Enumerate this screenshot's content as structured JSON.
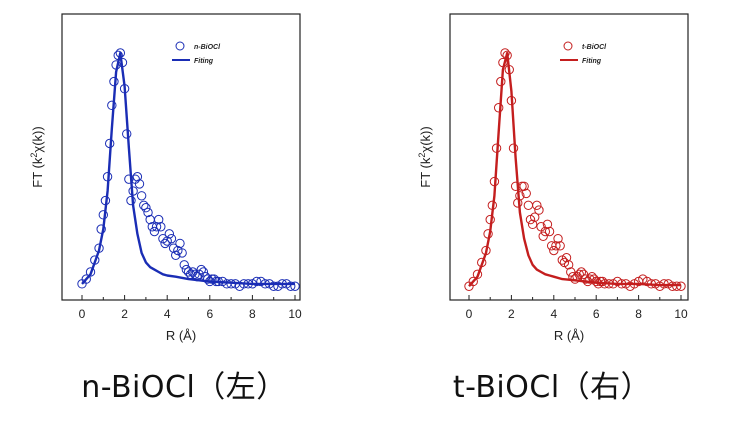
{
  "chart_data": [
    {
      "type": "scatter",
      "sample": "n-BiOCl",
      "xlabel": "R (Å)",
      "ylabel_prefix": "FT (k",
      "ylabel_sup": "2",
      "ylabel_suffix": "χ(k))",
      "xlim": [
        -1,
        10.5
      ],
      "ylim": [
        0,
        1.1
      ],
      "xticks": [
        "0",
        "2",
        "4",
        "6",
        "8",
        "10"
      ],
      "yticks": [],
      "legend_placement": "top-right",
      "color": "#1a2db5",
      "series": [
        {
          "name": "n-BiOCl",
          "style": "open-circles",
          "x": [
            0.0,
            0.2,
            0.4,
            0.6,
            0.8,
            0.9,
            1.0,
            1.1,
            1.2,
            1.3,
            1.4,
            1.5,
            1.6,
            1.7,
            1.8,
            1.9,
            2.0,
            2.1,
            2.2,
            2.3,
            2.4,
            2.5,
            2.6,
            2.7,
            2.8,
            2.9,
            3.0,
            3.1,
            3.2,
            3.3,
            3.4,
            3.5,
            3.6,
            3.7,
            3.8,
            3.9,
            4.0,
            4.1,
            4.2,
            4.3,
            4.4,
            4.5,
            4.6,
            4.7,
            4.8,
            4.9,
            5.0,
            5.1,
            5.2,
            5.3,
            5.4,
            5.5,
            5.6,
            5.7,
            5.8,
            5.9,
            6.0,
            6.1,
            6.2,
            6.3,
            6.4,
            6.6,
            6.8,
            7.0,
            7.2,
            7.4,
            7.6,
            7.8,
            8.0,
            8.2,
            8.4,
            8.6,
            8.8,
            9.0,
            9.2,
            9.4,
            9.6,
            9.8,
            10.0
          ],
          "y": [
            0.03,
            0.05,
            0.08,
            0.13,
            0.18,
            0.26,
            0.32,
            0.38,
            0.48,
            0.62,
            0.78,
            0.88,
            0.95,
            0.99,
            1.0,
            0.96,
            0.85,
            0.66,
            0.47,
            0.38,
            0.42,
            0.47,
            0.48,
            0.45,
            0.4,
            0.36,
            0.35,
            0.33,
            0.3,
            0.27,
            0.25,
            0.27,
            0.3,
            0.27,
            0.22,
            0.2,
            0.21,
            0.24,
            0.22,
            0.18,
            0.15,
            0.17,
            0.2,
            0.16,
            0.11,
            0.09,
            0.08,
            0.07,
            0.08,
            0.07,
            0.06,
            0.07,
            0.09,
            0.08,
            0.06,
            0.05,
            0.04,
            0.05,
            0.05,
            0.04,
            0.04,
            0.04,
            0.03,
            0.03,
            0.03,
            0.02,
            0.03,
            0.03,
            0.03,
            0.04,
            0.04,
            0.03,
            0.03,
            0.02,
            0.02,
            0.03,
            0.03,
            0.02,
            0.02
          ]
        },
        {
          "name": "Fiting",
          "style": "solid-line",
          "x": [
            0.0,
            0.4,
            0.8,
            1.0,
            1.2,
            1.4,
            1.6,
            1.8,
            2.0,
            2.2,
            2.4,
            2.6,
            2.8,
            3.0,
            3.2,
            3.4,
            3.6,
            3.8,
            4.0,
            4.4,
            5.0,
            5.5,
            6.0,
            7.0,
            8.0,
            9.0,
            10.0
          ],
          "y": [
            0.03,
            0.07,
            0.17,
            0.26,
            0.42,
            0.68,
            0.92,
            1.0,
            0.86,
            0.6,
            0.36,
            0.24,
            0.16,
            0.12,
            0.1,
            0.09,
            0.08,
            0.07,
            0.065,
            0.06,
            0.05,
            0.045,
            0.04,
            0.035,
            0.03,
            0.03,
            0.03
          ]
        }
      ]
    },
    {
      "type": "scatter",
      "sample": "t-BiOCl",
      "xlabel": "R (Å)",
      "ylabel_prefix": "FT (k",
      "ylabel_sup": "2",
      "ylabel_suffix": "χ(k))",
      "xlim": [
        -1,
        10.5
      ],
      "ylim": [
        0,
        1.1
      ],
      "xticks": [
        "0",
        "2",
        "4",
        "6",
        "8",
        "10"
      ],
      "yticks": [],
      "legend_placement": "top-right",
      "color": "#c41e1e",
      "series": [
        {
          "name": "t-BiOCl",
          "style": "open-circles",
          "x": [
            0.0,
            0.2,
            0.4,
            0.6,
            0.8,
            0.9,
            1.0,
            1.1,
            1.2,
            1.3,
            1.4,
            1.5,
            1.6,
            1.7,
            1.8,
            1.9,
            2.0,
            2.1,
            2.2,
            2.3,
            2.4,
            2.5,
            2.6,
            2.7,
            2.8,
            2.9,
            3.0,
            3.1,
            3.2,
            3.3,
            3.4,
            3.5,
            3.6,
            3.7,
            3.8,
            3.9,
            4.0,
            4.1,
            4.2,
            4.3,
            4.4,
            4.5,
            4.6,
            4.7,
            4.8,
            4.9,
            5.0,
            5.1,
            5.2,
            5.3,
            5.4,
            5.5,
            5.6,
            5.7,
            5.8,
            5.9,
            6.0,
            6.1,
            6.2,
            6.3,
            6.4,
            6.6,
            6.8,
            7.0,
            7.2,
            7.4,
            7.6,
            7.8,
            8.0,
            8.2,
            8.4,
            8.6,
            8.8,
            9.0,
            9.2,
            9.4,
            9.6,
            9.8,
            10.0
          ],
          "y": [
            0.02,
            0.04,
            0.07,
            0.12,
            0.17,
            0.24,
            0.3,
            0.36,
            0.46,
            0.6,
            0.77,
            0.88,
            0.96,
            1.0,
            0.99,
            0.93,
            0.8,
            0.6,
            0.44,
            0.37,
            0.4,
            0.44,
            0.44,
            0.41,
            0.36,
            0.3,
            0.28,
            0.31,
            0.36,
            0.34,
            0.27,
            0.23,
            0.25,
            0.28,
            0.25,
            0.19,
            0.17,
            0.19,
            0.22,
            0.19,
            0.13,
            0.12,
            0.14,
            0.11,
            0.08,
            0.06,
            0.05,
            0.06,
            0.07,
            0.08,
            0.07,
            0.05,
            0.04,
            0.05,
            0.06,
            0.05,
            0.04,
            0.03,
            0.04,
            0.04,
            0.03,
            0.03,
            0.03,
            0.04,
            0.03,
            0.03,
            0.02,
            0.03,
            0.04,
            0.05,
            0.04,
            0.03,
            0.03,
            0.02,
            0.03,
            0.03,
            0.02,
            0.02,
            0.02
          ]
        },
        {
          "name": "Fiting",
          "style": "solid-line",
          "x": [
            0.0,
            0.4,
            0.8,
            1.0,
            1.2,
            1.4,
            1.6,
            1.8,
            2.0,
            2.2,
            2.4,
            2.6,
            2.8,
            3.0,
            3.2,
            3.4,
            3.6,
            3.8,
            4.0,
            4.4,
            5.0,
            5.5,
            6.0,
            7.0,
            8.0,
            9.0,
            10.0
          ],
          "y": [
            0.02,
            0.06,
            0.16,
            0.25,
            0.4,
            0.67,
            0.93,
            1.0,
            0.84,
            0.56,
            0.33,
            0.22,
            0.15,
            0.11,
            0.09,
            0.08,
            0.07,
            0.065,
            0.06,
            0.05,
            0.045,
            0.04,
            0.035,
            0.03,
            0.03,
            0.025,
            0.025
          ]
        }
      ]
    }
  ],
  "captions": {
    "left": "n-BiOCl（左）",
    "right": "t-BiOCl（右）"
  }
}
